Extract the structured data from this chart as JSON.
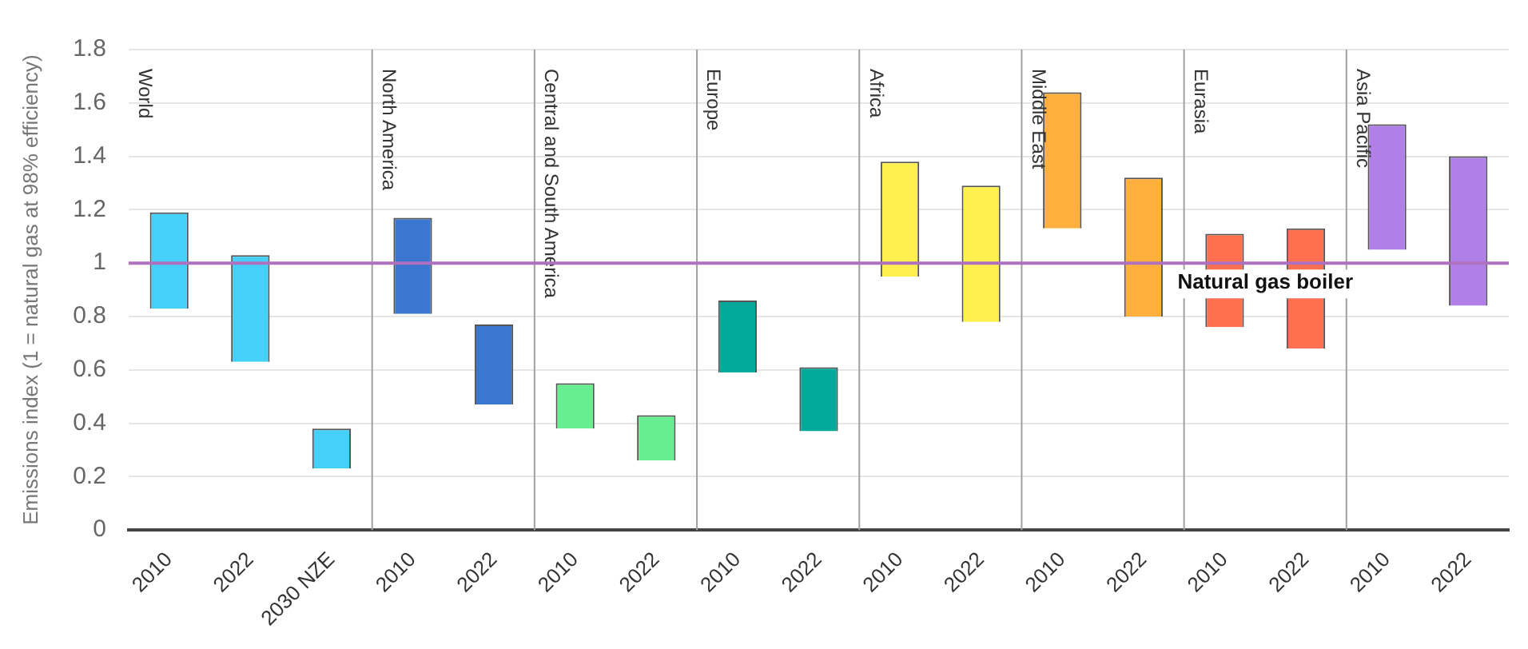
{
  "chart_data": {
    "type": "bar",
    "ylabel": "Emissions index (1 = natural gas at 98% efficiency)",
    "categories": [
      "2010",
      "2022",
      "2030 NZE",
      "2010",
      "2022",
      "2010",
      "2022",
      "2010",
      "2022",
      "2010",
      "2022",
      "2010",
      "2022",
      "2010",
      "2022",
      "2010",
      "2022"
    ],
    "base": [
      0.83,
      0.63,
      0.23,
      0.81,
      0.47,
      0.38,
      0.26,
      0.59,
      0.37,
      0.95,
      0.78,
      1.13,
      0.8,
      0.76,
      0.68,
      1.05,
      0.84
    ],
    "values": [
      0.36,
      0.4,
      0.15,
      0.36,
      0.3,
      0.17,
      0.17,
      0.27,
      0.24,
      0.43,
      0.51,
      0.51,
      0.52,
      0.35,
      0.45,
      0.47,
      0.56
    ],
    "colors": [
      "#45d0fa",
      "#45d0fa",
      "#45d0fa",
      "#3b77d0",
      "#3b77d0",
      "#66ee90",
      "#66ee90",
      "#00a99a",
      "#00a99a",
      "#fff050",
      "#fff050",
      "#ffb03c",
      "#ffb03c",
      "#ff7050",
      "#ff7050",
      "#b080e8",
      "#b080e8"
    ],
    "ylim": [
      0,
      1.8
    ],
    "yticks": [
      0,
      0.2,
      0.4,
      0.6,
      0.8,
      1,
      1.2,
      1.4,
      1.6,
      1.8
    ],
    "grid": "y",
    "legend": false,
    "ref_lines": [
      {
        "axis": "y",
        "value": 1,
        "label": "Natural gas boiler",
        "color": "#b070c0"
      }
    ],
    "annotations": [
      "World",
      "North America",
      "Central and South America",
      "Europe",
      "Africa",
      "Middle East",
      "Eurasia",
      "Asia Pacific"
    ]
  }
}
